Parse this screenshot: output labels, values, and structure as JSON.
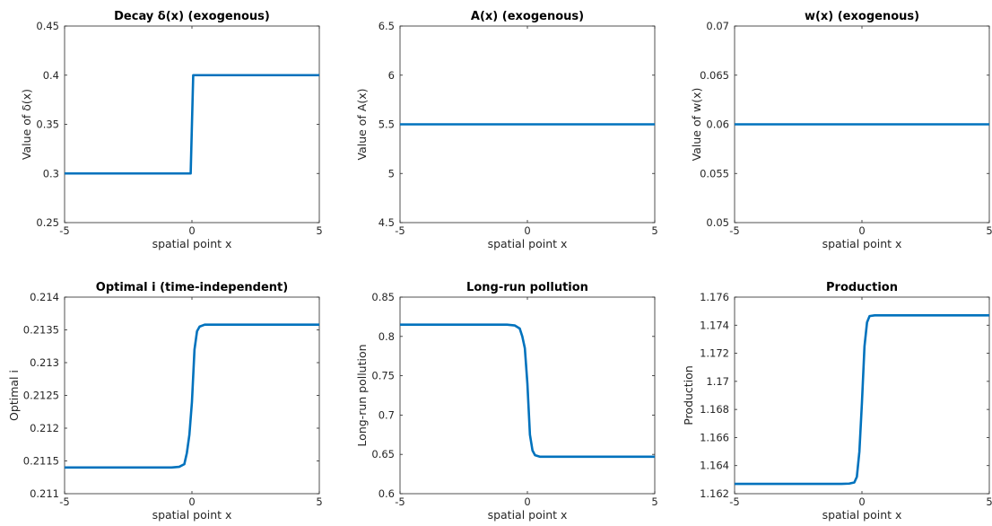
{
  "colors": {
    "line": "#0072BD",
    "axes": "#262626",
    "background": "#ffffff"
  },
  "chart_data": [
    {
      "type": "line",
      "title": "Decay δ(x) (exogenous)",
      "xlabel": "spatial point x",
      "ylabel": "Value of δ(x)",
      "xlim": [
        -5,
        5
      ],
      "ylim": [
        0.25,
        0.45
      ],
      "xticks": [
        -5,
        0,
        5
      ],
      "xtick_labels": [
        "-5",
        "0",
        "5"
      ],
      "yticks": [
        0.25,
        0.3,
        0.35,
        0.4,
        0.45
      ],
      "ytick_labels": [
        "0.25",
        "0.3",
        "0.35",
        "0.4",
        "0.45"
      ],
      "grid": false,
      "x": [
        -5,
        -0.05,
        0.05,
        5
      ],
      "y": [
        0.3,
        0.3,
        0.4,
        0.4
      ]
    },
    {
      "type": "line",
      "title": "A(x) (exogenous)",
      "xlabel": "spatial point x",
      "ylabel": "Value of A(x)",
      "xlim": [
        -5,
        5
      ],
      "ylim": [
        4.5,
        6.5
      ],
      "xticks": [
        -5,
        0,
        5
      ],
      "xtick_labels": [
        "-5",
        "0",
        "5"
      ],
      "yticks": [
        4.5,
        5,
        5.5,
        6,
        6.5
      ],
      "ytick_labels": [
        "4.5",
        "5",
        "5.5",
        "6",
        "6.5"
      ],
      "grid": false,
      "x": [
        -5,
        5
      ],
      "y": [
        5.5,
        5.5
      ]
    },
    {
      "type": "line",
      "title": "w(x) (exogenous)",
      "xlabel": "spatial point x",
      "ylabel": "Value of w(x)",
      "xlim": [
        -5,
        5
      ],
      "ylim": [
        0.05,
        0.07
      ],
      "xticks": [
        -5,
        0,
        5
      ],
      "xtick_labels": [
        "-5",
        "0",
        "5"
      ],
      "yticks": [
        0.05,
        0.055,
        0.06,
        0.065,
        0.07
      ],
      "ytick_labels": [
        "0.05",
        "0.055",
        "0.06",
        "0.065",
        "0.07"
      ],
      "grid": false,
      "x": [
        -5,
        5
      ],
      "y": [
        0.06,
        0.06
      ]
    },
    {
      "type": "line",
      "title": "Optimal i (time-independent)",
      "xlabel": "spatial point x",
      "ylabel": "Optimal i",
      "xlim": [
        -5,
        5
      ],
      "ylim": [
        0.211,
        0.214
      ],
      "xticks": [
        -5,
        0,
        5
      ],
      "xtick_labels": [
        "-5",
        "0",
        "5"
      ],
      "yticks": [
        0.211,
        0.2115,
        0.212,
        0.2125,
        0.213,
        0.2135,
        0.214
      ],
      "ytick_labels": [
        "0.211",
        "0.2115",
        "0.212",
        "0.2125",
        "0.213",
        "0.2135",
        "0.214"
      ],
      "grid": false,
      "x": [
        -5,
        -0.8,
        -0.5,
        -0.3,
        -0.2,
        -0.1,
        0,
        0.1,
        0.2,
        0.3,
        0.5,
        0.8,
        5
      ],
      "y": [
        0.2114,
        0.2114,
        0.21141,
        0.21145,
        0.21162,
        0.2119,
        0.2124,
        0.2132,
        0.21348,
        0.21355,
        0.21358,
        0.21358,
        0.21358
      ]
    },
    {
      "type": "line",
      "title": "Long-run pollution",
      "xlabel": "spatial point x",
      "ylabel": "Long-run pollution",
      "xlim": [
        -5,
        5
      ],
      "ylim": [
        0.6,
        0.85
      ],
      "xticks": [
        -5,
        0,
        5
      ],
      "xtick_labels": [
        "-5",
        "0",
        "5"
      ],
      "yticks": [
        0.6,
        0.65,
        0.7,
        0.75,
        0.8,
        0.85
      ],
      "ytick_labels": [
        "0.6",
        "0.65",
        "0.7",
        "0.75",
        "0.8",
        "0.85"
      ],
      "grid": false,
      "x": [
        -5,
        -0.8,
        -0.5,
        -0.3,
        -0.2,
        -0.1,
        0,
        0.1,
        0.2,
        0.3,
        0.5,
        0.8,
        5
      ],
      "y": [
        0.815,
        0.815,
        0.814,
        0.81,
        0.8,
        0.785,
        0.74,
        0.675,
        0.655,
        0.649,
        0.647,
        0.647,
        0.647
      ]
    },
    {
      "type": "line",
      "title": "Production",
      "xlabel": "spatial point x",
      "ylabel": "Production",
      "xlim": [
        -5,
        5
      ],
      "ylim": [
        1.162,
        1.176
      ],
      "xticks": [
        -5,
        0,
        5
      ],
      "xtick_labels": [
        "-5",
        "0",
        "5"
      ],
      "yticks": [
        1.162,
        1.164,
        1.166,
        1.168,
        1.17,
        1.172,
        1.174,
        1.176
      ],
      "ytick_labels": [
        "1.162",
        "1.164",
        "1.166",
        "1.168",
        "1.17",
        "1.172",
        "1.174",
        "1.176"
      ],
      "grid": false,
      "x": [
        -5,
        -0.8,
        -0.5,
        -0.3,
        -0.2,
        -0.1,
        0,
        0.1,
        0.2,
        0.3,
        0.5,
        0.8,
        5
      ],
      "y": [
        1.1627,
        1.1627,
        1.16272,
        1.1628,
        1.1632,
        1.165,
        1.1685,
        1.1725,
        1.1742,
        1.17465,
        1.1747,
        1.1747,
        1.1747
      ]
    }
  ]
}
